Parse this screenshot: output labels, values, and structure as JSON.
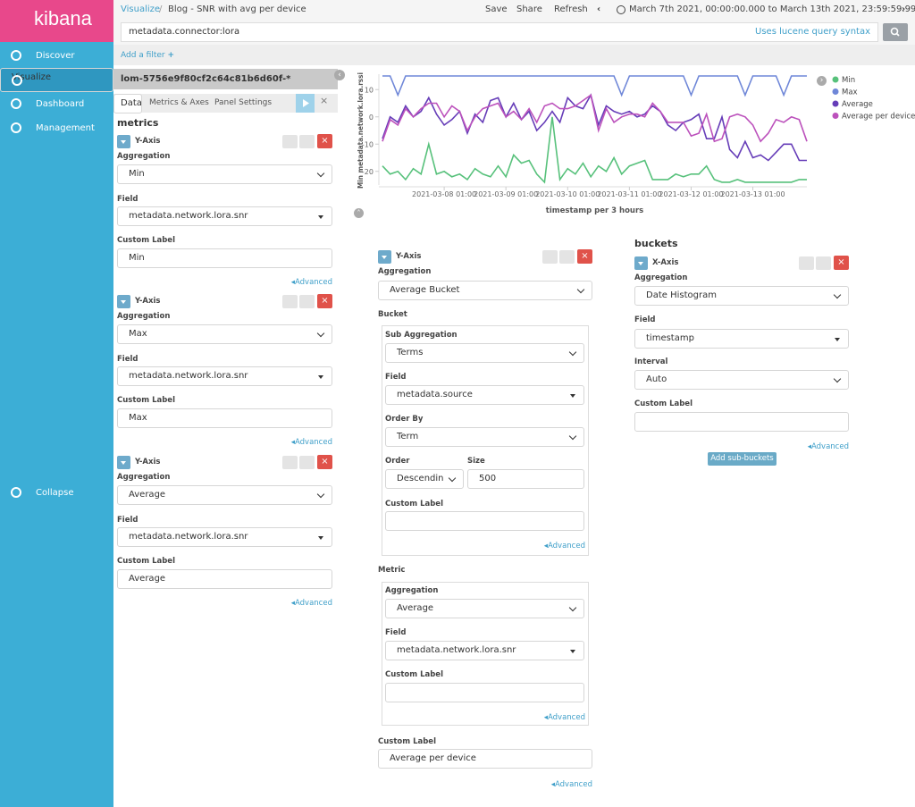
{
  "sidebar": {
    "brand": "kibana",
    "nav": [
      "Discover",
      "Visualize",
      "Dashboard",
      "Management"
    ],
    "collapse": "Collapse"
  },
  "top_bar": {
    "breadcrumb": "Visualize",
    "title": "Blog - SNR with avg per device",
    "actions": [
      "Save",
      "Share",
      "Refresh"
    ],
    "time_range": "March 7th 2021, 00:00:00.000 to March 13th 2021, 23:59:59.999"
  },
  "query_bar": {
    "query": "metadata.connector:lora",
    "syntax_hint": "Uses lucene query syntax"
  },
  "filter_bar": {
    "add_filter": "Add a filter"
  },
  "labels": {
    "aggregation": "Aggregation",
    "field": "Field",
    "custom_label": "Custom Label",
    "advanced": "Advanced"
  },
  "editor": {
    "index_pattern": "lom-5756e9f80cf2c64c81b6d60f-*",
    "tabs": [
      "Data",
      "Metrics & Axes",
      "Panel Settings"
    ],
    "metrics_heading": "metrics",
    "metrics": [
      {
        "schema": "Y-Axis",
        "aggregation": "Min",
        "field": "metadata.network.lora.snr",
        "custom_label": "Min"
      },
      {
        "schema": "Y-Axis",
        "aggregation": "Max",
        "field": "metadata.network.lora.snr",
        "custom_label": "Max"
      },
      {
        "schema": "Y-Axis",
        "aggregation": "Average",
        "field": "metadata.network.lora.snr",
        "custom_label": "Average"
      },
      {
        "schema": "Y-Axis",
        "aggregation": "Average Bucket",
        "bucket": {
          "heading": "Bucket",
          "sub_aggregation_label": "Sub Aggregation",
          "sub_aggregation": "Terms",
          "field": "metadata.source",
          "order_by_label": "Order By",
          "order_by": "Term",
          "order_label": "Order",
          "order": "Descendin",
          "size_label": "Size",
          "size": 500
        },
        "metric": {
          "heading": "Metric",
          "aggregation": "Average",
          "field": "metadata.network.lora.snr"
        },
        "custom_label": "Average per device"
      }
    ],
    "buckets_heading": "buckets",
    "buckets": [
      {
        "schema": "X-Axis",
        "aggregation": "Date Histogram",
        "field": "timestamp",
        "interval_label": "Interval",
        "interval": "Auto"
      }
    ],
    "add_sub_buckets": "Add sub-buckets"
  },
  "chart_data": {
    "type": "line",
    "y_label": "Min metadata.network.lora.rssi",
    "x_label": "timestamp per 3 hours",
    "x": [
      "2021-03-07 01:00",
      "2021-03-07 04:00",
      "2021-03-07 07:00",
      "2021-03-07 10:00",
      "2021-03-07 13:00",
      "2021-03-07 16:00",
      "2021-03-07 19:00",
      "2021-03-07 22:00",
      "2021-03-08 01:00",
      "2021-03-08 04:00",
      "2021-03-08 07:00",
      "2021-03-08 10:00",
      "2021-03-08 13:00",
      "2021-03-08 16:00",
      "2021-03-08 19:00",
      "2021-03-08 22:00",
      "2021-03-09 01:00",
      "2021-03-09 04:00",
      "2021-03-09 07:00",
      "2021-03-09 10:00",
      "2021-03-09 13:00",
      "2021-03-09 16:00",
      "2021-03-09 19:00",
      "2021-03-09 22:00",
      "2021-03-10 01:00",
      "2021-03-10 04:00",
      "2021-03-10 07:00",
      "2021-03-10 10:00",
      "2021-03-10 13:00",
      "2021-03-10 16:00",
      "2021-03-10 19:00",
      "2021-03-10 22:00",
      "2021-03-11 01:00",
      "2021-03-11 04:00",
      "2021-03-11 07:00",
      "2021-03-11 10:00",
      "2021-03-11 13:00",
      "2021-03-11 16:00",
      "2021-03-11 19:00",
      "2021-03-11 22:00",
      "2021-03-12 01:00",
      "2021-03-12 04:00",
      "2021-03-12 07:00",
      "2021-03-12 10:00",
      "2021-03-12 13:00",
      "2021-03-12 16:00",
      "2021-03-12 19:00",
      "2021-03-12 22:00",
      "2021-03-13 01:00",
      "2021-03-13 04:00",
      "2021-03-13 07:00",
      "2021-03-13 10:00",
      "2021-03-13 13:00",
      "2021-03-13 16:00",
      "2021-03-13 19:00",
      "2021-03-13 22:00"
    ],
    "xlim": [
      "2021-03-07 01:00",
      "2021-03-13 22:00"
    ],
    "xticks": [
      "2021-03-08 01:00",
      "2021-03-09 01:00",
      "2021-03-10 01:00",
      "2021-03-11 01:00",
      "2021-03-12 01:00",
      "2021-03-13 01:00"
    ],
    "ylim": [
      -25,
      15
    ],
    "yticks": [
      -20,
      -10,
      0,
      10
    ],
    "grid": false,
    "legend": "right",
    "series": [
      {
        "name": "Min",
        "color": "#57c17b",
        "values": [
          -18,
          -21,
          -20,
          -23,
          -19,
          -21,
          -10,
          -21,
          -20,
          -22,
          -21,
          -23,
          -19,
          -21,
          -22,
          -18,
          -22,
          -14,
          -17,
          -16,
          -21,
          -24,
          0,
          -23,
          -19,
          -21,
          -17,
          -22,
          -18,
          -20,
          -15,
          -21,
          -18,
          -17,
          -16,
          -23,
          -23,
          -23,
          -21,
          -22,
          -21,
          -21,
          -18,
          -23,
          -24,
          -24,
          -23,
          -24,
          -24,
          -24,
          -24,
          -24,
          -24,
          -24,
          -23,
          -23
        ]
      },
      {
        "name": "Max",
        "color": "#6f87d8",
        "values": [
          15,
          15,
          8,
          15,
          15,
          15,
          15,
          15,
          15,
          15,
          15,
          15,
          15,
          15,
          15,
          15,
          15,
          15,
          15,
          15,
          15,
          15,
          15,
          15,
          15,
          15,
          15,
          15,
          15,
          15,
          15,
          8,
          15,
          15,
          15,
          15,
          15,
          15,
          15,
          15,
          8,
          15,
          15,
          15,
          15,
          15,
          15,
          8,
          15,
          15,
          15,
          15,
          8,
          15,
          15,
          15
        ]
      },
      {
        "name": "Average",
        "color": "#663db8",
        "values": [
          -8,
          0,
          -2,
          4,
          0,
          2,
          7,
          1,
          -3,
          -1,
          2,
          -6,
          1,
          -2,
          6,
          7,
          0,
          5,
          -1,
          2,
          -5,
          -2,
          2,
          -2,
          7,
          4,
          3,
          8,
          -3,
          4,
          2,
          1,
          2,
          0,
          1,
          4,
          2,
          -3,
          -5,
          -2,
          -1,
          1,
          -8,
          -8,
          0,
          -12,
          -15,
          -9,
          -15,
          -14,
          -16,
          -13,
          -10,
          -10,
          -16,
          -16
        ]
      },
      {
        "name": "Average per device",
        "color": "#bc52bc",
        "values": [
          -9,
          -1,
          -3,
          3,
          0,
          3,
          5,
          5,
          0,
          4,
          2,
          -5,
          0,
          3,
          4,
          5,
          0,
          2,
          -1,
          3,
          -2,
          4,
          5,
          3,
          3,
          4,
          6,
          8,
          -5,
          3,
          -2,
          0,
          1,
          1,
          0,
          5,
          2,
          -2,
          -2,
          -2,
          -7,
          -6,
          1,
          -9,
          -8,
          0,
          1,
          0,
          -3,
          -9,
          -6,
          -1,
          -2,
          0,
          -1,
          -9
        ]
      }
    ]
  }
}
